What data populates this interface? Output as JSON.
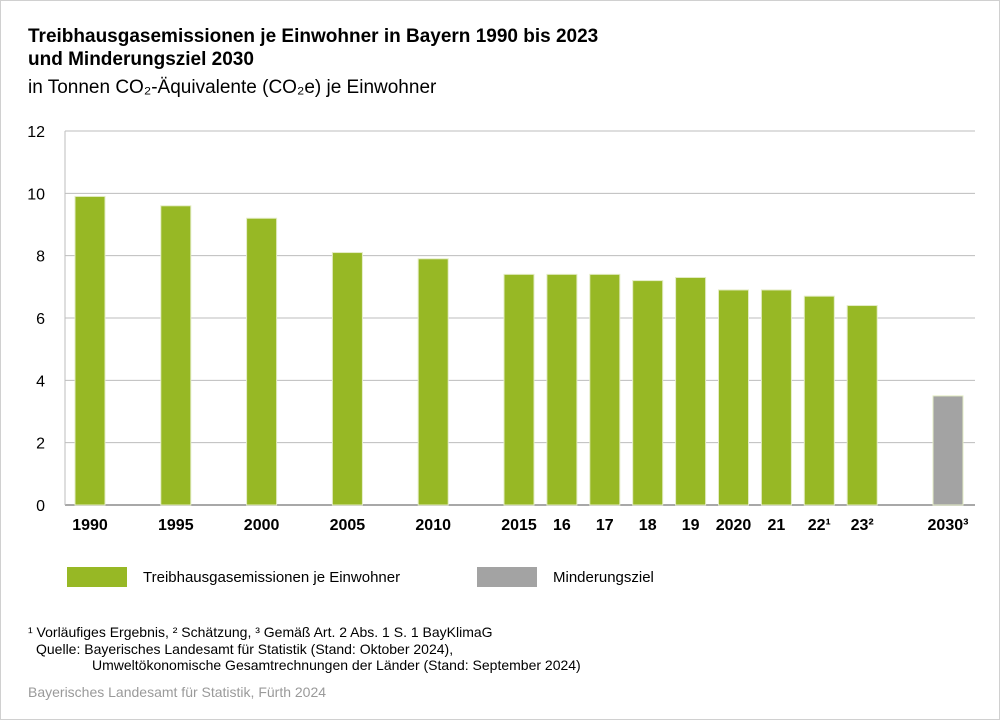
{
  "title_line1": "Treibhausgasemissionen je Einwohner in Bayern 1990 bis 2023",
  "title_line2": "und Minderungsziel 2030",
  "subtitle": "in Tonnen CO₂-Äquivalente (CO₂e) je Einwohner",
  "chart_data": {
    "type": "bar",
    "title": "Treibhausgasemissionen je Einwohner in Bayern 1990 bis 2023 und Minderungsziel 2030",
    "ylabel": "in Tonnen CO₂-Äquivalente (CO₂e) je Einwohner",
    "xlabel": "",
    "ylim": [
      0,
      12
    ],
    "yticks": [
      0,
      2,
      4,
      6,
      8,
      10,
      12
    ],
    "grid": true,
    "categories": [
      "1990",
      "1995",
      "2000",
      "2005",
      "2010",
      "2015",
      "16",
      "17",
      "18",
      "19",
      "2020",
      "21",
      "22¹",
      "23²",
      "2030³"
    ],
    "series": [
      {
        "name": "Treibhausgasemissionen je Einwohner",
        "color": "#97b825",
        "values": [
          9.9,
          9.6,
          9.2,
          8.1,
          7.9,
          7.4,
          7.4,
          7.4,
          7.2,
          7.3,
          6.9,
          6.9,
          6.7,
          6.4,
          null
        ]
      },
      {
        "name": "Minderungsziel",
        "color": "#a3a3a3",
        "values": [
          null,
          null,
          null,
          null,
          null,
          null,
          null,
          null,
          null,
          null,
          null,
          null,
          null,
          null,
          3.5
        ]
      }
    ],
    "legend_position": "bottom"
  },
  "legend": [
    "Treibhausgasemissionen je Einwohner",
    "Minderungsziel"
  ],
  "footnotes": {
    "line1": "¹ Vorläufiges Ergebnis, ² Schätzung, ³ Gemäß Art. 2 Abs. 1 S. 1 BayKlimaG",
    "line2": "Quelle: Bayerisches Landesamt für Statistik (Stand: Oktober 2024),",
    "line3": "Umweltökonomische Gesamtrechnungen der Länder (Stand: September 2024)"
  },
  "credit": "Bayerisches Landesamt für Statistik, Fürth 2024"
}
